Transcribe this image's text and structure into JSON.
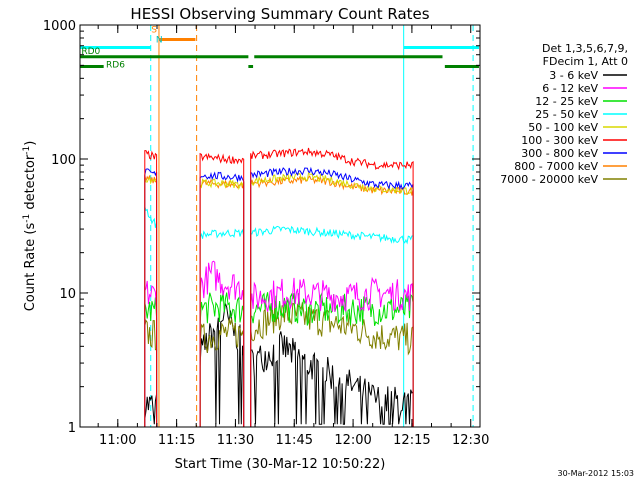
{
  "chart_data": {
    "type": "line",
    "title": "HESSI Observing Summary Count Rates",
    "xlabel": "Start Time (30-Mar-12 10:50:22)",
    "ylabel_main": "Count Rate (s",
    "ylabel_sup1": "-1",
    "ylabel_mid": " detector",
    "ylabel_sup2": "-1",
    "ylabel_end": ")",
    "footer": "30-Mar-2012 15:03",
    "y_scale": "log",
    "ylim": [
      1,
      1000
    ],
    "xlim": [
      10.8394,
      12.5394
    ],
    "x_ticks": [
      {
        "value": 11.0,
        "label": "11:00"
      },
      {
        "value": 11.25,
        "label": "11:15"
      },
      {
        "value": 11.5,
        "label": "11:30"
      },
      {
        "value": 11.75,
        "label": "11:45"
      },
      {
        "value": 12.0,
        "label": "12:00"
      },
      {
        "value": 12.25,
        "label": "12:15"
      },
      {
        "value": 12.5,
        "label": "12:30"
      }
    ],
    "y_ticks": [
      {
        "value": 1,
        "label": "1"
      },
      {
        "value": 10,
        "label": "10"
      },
      {
        "value": 100,
        "label": "100"
      },
      {
        "value": 1000,
        "label": "1000"
      }
    ],
    "legend": {
      "placement": "right",
      "header": [
        "Det 1,3,5,6,7,9,",
        "FDecim 1, Att 0"
      ],
      "entries": [
        {
          "label": "3 - 6 keV",
          "color": "#000000"
        },
        {
          "label": "6 - 12 keV",
          "color": "#ff00ff"
        },
        {
          "label": "12 - 25 keV",
          "color": "#00e000"
        },
        {
          "label": "25 - 50 keV",
          "color": "#00ffff"
        },
        {
          "label": "50 - 100 keV",
          "color": "#d8d800"
        },
        {
          "label": "100 - 300 keV",
          "color": "#ff0000"
        },
        {
          "label": "300 - 800 keV",
          "color": "#0000ff"
        },
        {
          "label": "800 - 7000 keV",
          "color": "#ff8000"
        },
        {
          "label": "7000 - 20000 keV",
          "color": "#808000"
        }
      ]
    },
    "segments": [
      [
        11.115,
        11.165
      ],
      [
        11.35,
        11.535
      ],
      [
        11.565,
        12.255
      ]
    ],
    "series": [
      {
        "color": "#ff0000",
        "points": [
          [
            11.115,
            110
          ],
          [
            11.165,
            102
          ],
          [
            11.35,
            104
          ],
          [
            11.45,
            100
          ],
          [
            11.535,
            98
          ],
          [
            11.565,
            105
          ],
          [
            11.7,
            110
          ],
          [
            11.8,
            114
          ],
          [
            11.9,
            108
          ],
          [
            12.0,
            96
          ],
          [
            12.1,
            90
          ],
          [
            12.255,
            90
          ]
        ]
      },
      {
        "color": "#0000ff",
        "points": [
          [
            11.115,
            80
          ],
          [
            11.165,
            76
          ],
          [
            11.35,
            76
          ],
          [
            11.45,
            74
          ],
          [
            11.535,
            73
          ],
          [
            11.565,
            76
          ],
          [
            11.7,
            80
          ],
          [
            11.8,
            82
          ],
          [
            11.9,
            78
          ],
          [
            12.0,
            70
          ],
          [
            12.1,
            64
          ],
          [
            12.255,
            63
          ]
        ]
      },
      {
        "color": "#d8d800",
        "points": [
          [
            11.115,
            72
          ],
          [
            11.165,
            70
          ],
          [
            11.35,
            66
          ],
          [
            11.45,
            66
          ],
          [
            11.535,
            64
          ],
          [
            11.565,
            68
          ],
          [
            11.7,
            72
          ],
          [
            11.8,
            74
          ],
          [
            11.9,
            70
          ],
          [
            12.0,
            64
          ],
          [
            12.1,
            60
          ],
          [
            12.255,
            58
          ]
        ]
      },
      {
        "color": "#ff8000",
        "points": [
          [
            11.115,
            72
          ],
          [
            11.165,
            68
          ],
          [
            11.35,
            66
          ],
          [
            11.45,
            65
          ],
          [
            11.535,
            64
          ],
          [
            11.565,
            66
          ],
          [
            11.7,
            68
          ],
          [
            11.8,
            70
          ],
          [
            11.9,
            68
          ],
          [
            12.0,
            62
          ],
          [
            12.1,
            58
          ],
          [
            12.255,
            57
          ]
        ]
      },
      {
        "color": "#00ffff",
        "points": [
          [
            11.115,
            45
          ],
          [
            11.14,
            36
          ],
          [
            11.165,
            32
          ],
          [
            11.35,
            27
          ],
          [
            11.45,
            28
          ],
          [
            11.535,
            28
          ],
          [
            11.565,
            28
          ],
          [
            11.7,
            30
          ],
          [
            11.8,
            29
          ],
          [
            11.9,
            28
          ],
          [
            12.0,
            27
          ],
          [
            12.1,
            26
          ],
          [
            12.255,
            25
          ]
        ]
      },
      {
        "color": "#ff00ff",
        "points": [
          [
            11.115,
            10
          ],
          [
            11.165,
            9.5
          ],
          [
            11.35,
            11
          ],
          [
            11.4,
            14
          ],
          [
            11.45,
            12
          ],
          [
            11.535,
            11
          ],
          [
            11.565,
            9
          ],
          [
            11.7,
            10
          ],
          [
            11.8,
            10
          ],
          [
            11.9,
            9.5
          ],
          [
            12.0,
            9.5
          ],
          [
            12.1,
            10
          ],
          [
            12.255,
            9.5
          ]
        ]
      },
      {
        "color": "#00e000",
        "points": [
          [
            11.115,
            7.5
          ],
          [
            11.165,
            7.2
          ],
          [
            11.35,
            7.5
          ],
          [
            11.45,
            8
          ],
          [
            11.535,
            7.5
          ],
          [
            11.565,
            7.5
          ],
          [
            11.7,
            8
          ],
          [
            11.8,
            7.5
          ],
          [
            11.9,
            7.5
          ],
          [
            12.0,
            7.5
          ],
          [
            12.1,
            7.5
          ],
          [
            12.255,
            7.5
          ]
        ]
      },
      {
        "color": "#808000",
        "points": [
          [
            11.115,
            5
          ],
          [
            11.165,
            4.8
          ],
          [
            11.35,
            4.5
          ],
          [
            11.45,
            5
          ],
          [
            11.535,
            5
          ],
          [
            11.565,
            5.5
          ],
          [
            11.7,
            7
          ],
          [
            11.8,
            6.5
          ],
          [
            11.9,
            6
          ],
          [
            12.0,
            5.5
          ],
          [
            12.1,
            4.8
          ],
          [
            12.255,
            4.5
          ]
        ]
      },
      {
        "color": "#000000",
        "points": [
          [
            11.115,
            1.5
          ],
          [
            11.165,
            1.4
          ],
          [
            11.35,
            3.5
          ],
          [
            11.45,
            7
          ],
          [
            11.535,
            4
          ],
          [
            11.565,
            3
          ],
          [
            11.7,
            4
          ],
          [
            11.8,
            3
          ],
          [
            11.9,
            2.5
          ],
          [
            12.0,
            2
          ],
          [
            12.1,
            1.6
          ],
          [
            12.255,
            1.5
          ]
        ]
      }
    ],
    "vertical_lines": [
      {
        "x": 11.14,
        "color": "#00ffff",
        "style": "dashed"
      },
      {
        "x": 11.175,
        "color": "#ff8000",
        "style": "solid"
      },
      {
        "x": 11.335,
        "color": "#ff8000",
        "style": "dashed"
      },
      {
        "x": 12.215,
        "color": "#00ffff",
        "style": "solid"
      },
      {
        "x": 12.51,
        "color": "#00ffff",
        "style": "dashed"
      }
    ],
    "flags": {
      "cyan_bars": [
        {
          "y": 680,
          "x1": 10.8394,
          "x2": 11.14
        },
        {
          "y": 680,
          "x1": 12.215,
          "x2": 12.535
        }
      ],
      "orange_bar": {
        "y": 780,
        "x1": 11.175,
        "x2": 11.33
      },
      "green_bars": [
        {
          "y": 580,
          "x1": 10.8394,
          "x2": 11.555
        },
        {
          "y": 580,
          "x1": 11.58,
          "x2": 12.38
        },
        {
          "y": 490,
          "x1": 10.8394,
          "x2": 10.94
        },
        {
          "y": 490,
          "x1": 11.555,
          "x2": 11.575
        },
        {
          "y": 490,
          "x1": 12.39,
          "x2": 12.535
        }
      ],
      "labels": [
        {
          "text": "RD0",
          "x": 10.845,
          "y": 610,
          "color": "#008000"
        },
        {
          "text": "RD6",
          "x": 10.95,
          "y": 480,
          "color": "#008000"
        },
        {
          "text": "S",
          "x": 11.142,
          "y": 880,
          "color": "#ff8000"
        },
        {
          "text": "N",
          "x": 11.162,
          "y": 740,
          "color": "#00c0c0"
        }
      ]
    }
  }
}
